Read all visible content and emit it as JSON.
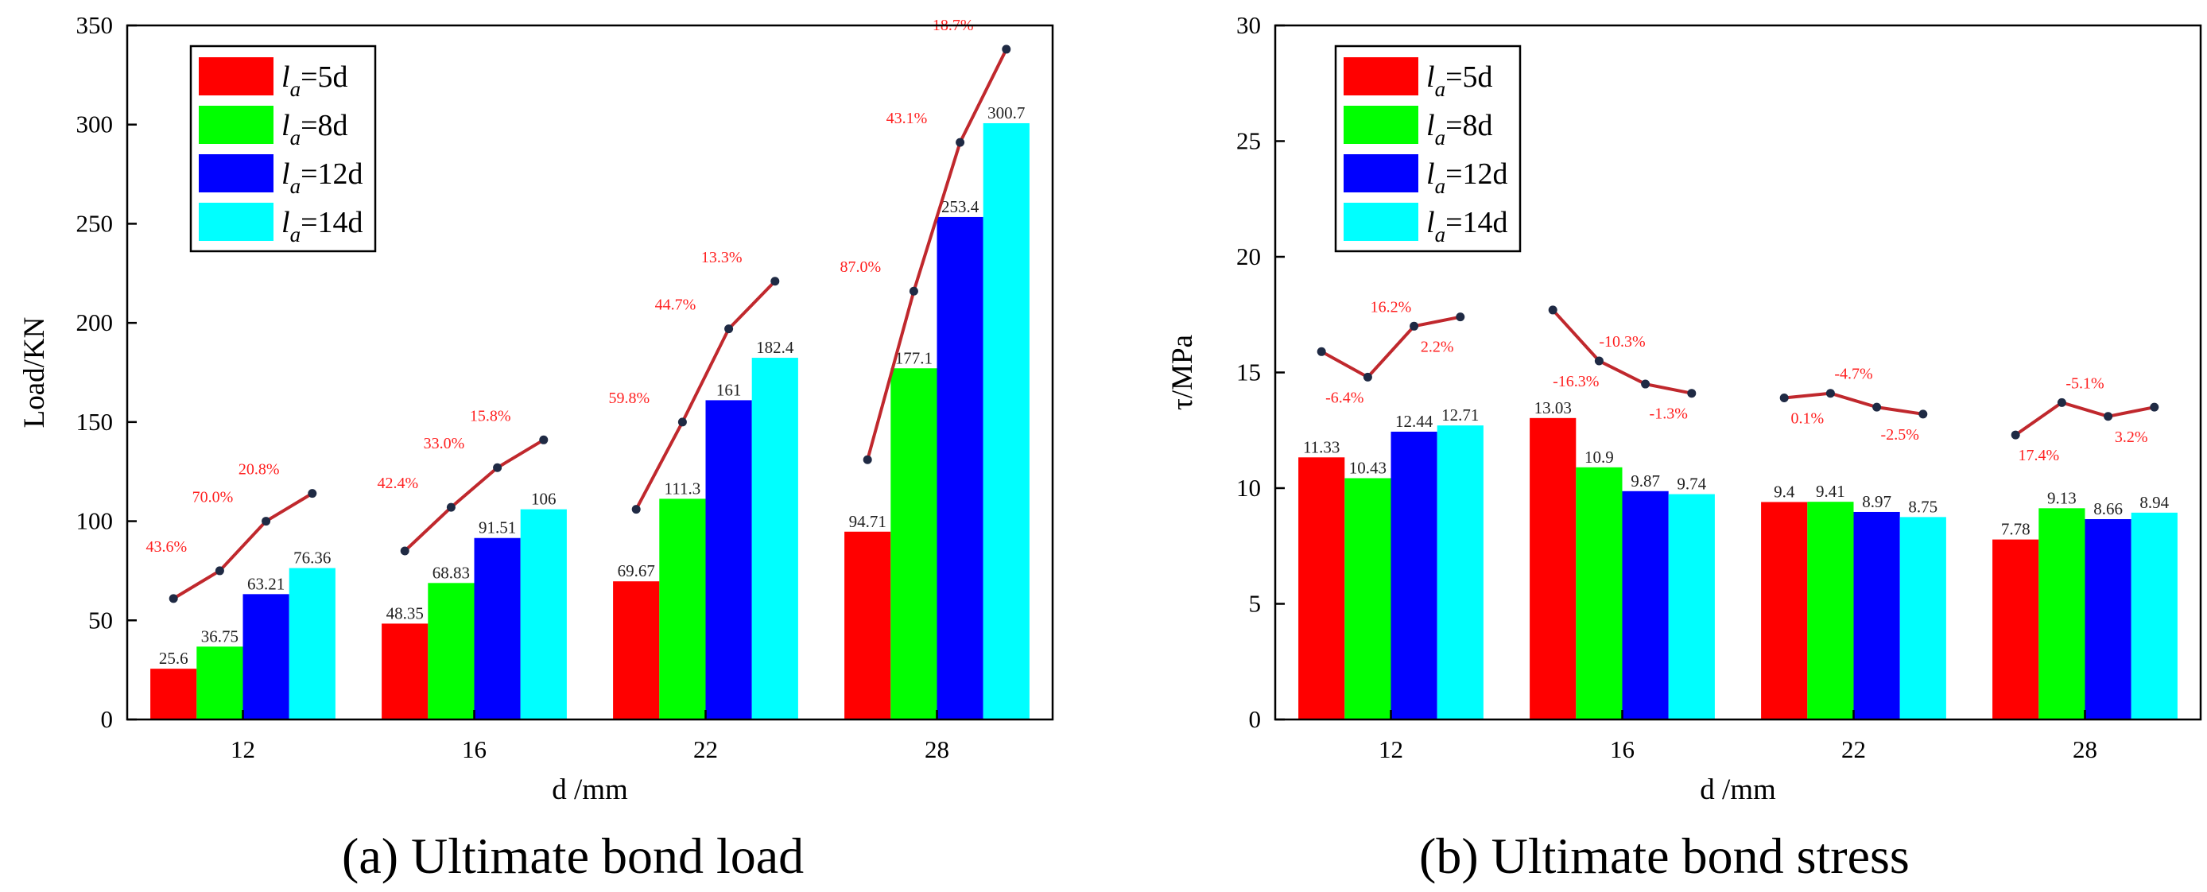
{
  "captions": {
    "a": "(a) Ultimate bond load",
    "b": "(b) Ultimate bond stress"
  },
  "legend_labels": [
    {
      "symbol": "l",
      "sub": "a",
      "value": "=5d",
      "color": "#ff0000"
    },
    {
      "symbol": "l",
      "sub": "a",
      "value": "=8d",
      "color": "#00ff00"
    },
    {
      "symbol": "l",
      "sub": "a",
      "value": "=12d",
      "color": "#0000ff"
    },
    {
      "symbol": "l",
      "sub": "a",
      "value": "=14d",
      "color": "#00ffff"
    }
  ],
  "colors": {
    "line": "#c0282d",
    "marker": "#1f2a44",
    "pct": "#ff2020"
  },
  "chart_data": [
    {
      "type": "bar",
      "title": "",
      "xlabel": "d /mm",
      "ylabel": "Load/KN",
      "ylim": [
        0,
        350
      ],
      "yticks": [
        0,
        50,
        100,
        150,
        200,
        250,
        300,
        350
      ],
      "legend_position": "top-left",
      "categories": [
        "12",
        "16",
        "22",
        "28"
      ],
      "series": [
        {
          "name": "la=5d",
          "values": [
            25.6,
            48.35,
            69.67,
            94.71
          ],
          "labels": [
            "25.6",
            "48.35",
            "69.67",
            "94.71"
          ]
        },
        {
          "name": "la=8d",
          "values": [
            36.75,
            68.83,
            111.3,
            177.1
          ],
          "labels": [
            "36.75",
            "68.83",
            "111.3",
            "177.1"
          ]
        },
        {
          "name": "la=12d",
          "values": [
            63.21,
            91.51,
            161,
            253.4
          ],
          "labels": [
            "63.21",
            "91.51",
            "161",
            "253.4"
          ]
        },
        {
          "name": "la=14d",
          "values": [
            76.36,
            106,
            182.4,
            300.7
          ],
          "labels": [
            "76.36",
            "106",
            "182.4",
            "300.7"
          ]
        }
      ],
      "increase_lines": [
        {
          "values": [
            61,
            75,
            100,
            114
          ],
          "pct": [
            "43.6%",
            "70.0%",
            "20.8%"
          ]
        },
        {
          "values": [
            85,
            107,
            127,
            141
          ],
          "pct": [
            "42.4%",
            "33.0%",
            "15.8%"
          ]
        },
        {
          "values": [
            106,
            150,
            197,
            221
          ],
          "pct": [
            "59.8%",
            "44.7%",
            "13.3%"
          ]
        },
        {
          "values": [
            131,
            216,
            291,
            338
          ],
          "pct": [
            "87.0%",
            "43.1%",
            "18.7%"
          ]
        }
      ]
    },
    {
      "type": "bar",
      "title": "",
      "xlabel": "d /mm",
      "ylabel": "τ/MPa",
      "ylim": [
        0,
        30
      ],
      "yticks": [
        0,
        5,
        10,
        15,
        20,
        25,
        30
      ],
      "legend_position": "top-left",
      "categories": [
        "12",
        "16",
        "22",
        "28"
      ],
      "series": [
        {
          "name": "la=5d",
          "values": [
            11.33,
            13.03,
            9.4,
            7.78
          ],
          "labels": [
            "11.33",
            "13.03",
            "9.4",
            "7.78"
          ]
        },
        {
          "name": "la=8d",
          "values": [
            10.43,
            10.9,
            9.41,
            9.13
          ],
          "labels": [
            "10.43",
            "10.9",
            "9.41",
            "9.13"
          ]
        },
        {
          "name": "la=12d",
          "values": [
            12.44,
            9.87,
            8.97,
            8.66
          ],
          "labels": [
            "12.44",
            "9.87",
            "8.97",
            "8.66"
          ]
        },
        {
          "name": "la=14d",
          "values": [
            12.71,
            9.74,
            8.75,
            8.94
          ],
          "labels": [
            "12.71",
            "9.74",
            "8.75",
            "8.94"
          ]
        }
      ],
      "increase_lines": [
        {
          "values": [
            15.9,
            14.8,
            17.0,
            17.4
          ],
          "pct": [
            "-6.4%",
            "16.2%",
            "2.2%"
          ]
        },
        {
          "values": [
            17.7,
            15.5,
            14.5,
            14.1
          ],
          "pct": [
            "-16.3%",
            "-10.3%",
            "-1.3%"
          ]
        },
        {
          "values": [
            13.9,
            14.1,
            13.5,
            13.2
          ],
          "pct": [
            "0.1%",
            "-4.7%",
            "-2.5%"
          ]
        },
        {
          "values": [
            12.3,
            13.7,
            13.1,
            13.5
          ],
          "pct": [
            "17.4%",
            "-5.1%",
            "3.2%"
          ]
        }
      ]
    }
  ]
}
